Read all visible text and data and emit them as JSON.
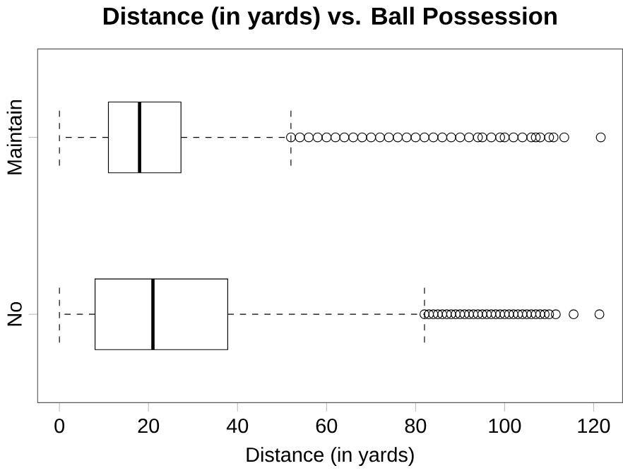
{
  "chart_data": {
    "type": "box",
    "title": "Distance (in yards) vs. Ball Possession",
    "xlabel": "Distance (in yards)",
    "orientation": "horizontal",
    "categories": [
      "Maintain",
      "No"
    ],
    "boxes": [
      {
        "low": 0,
        "q1": 11,
        "median": 18,
        "q3": 27.3,
        "high": 52,
        "outliers": [
          52,
          54,
          56,
          58,
          60,
          62,
          64,
          66,
          68,
          70,
          72,
          74,
          76,
          78,
          80,
          82,
          84,
          86,
          88,
          90,
          92,
          94,
          95,
          97,
          99,
          100,
          102,
          104,
          106,
          107,
          108,
          110,
          111,
          113.4,
          121.6
        ]
      },
      {
        "low": 0,
        "q1": 8,
        "median": 21,
        "q3": 37.8,
        "high": 82,
        "outliers": [
          82,
          83,
          84,
          85,
          86,
          87,
          88,
          89,
          90,
          91,
          92,
          93,
          94,
          95,
          96,
          97,
          98,
          99,
          100,
          101,
          102,
          103,
          104,
          105,
          106,
          107,
          108,
          109,
          110,
          111.5,
          115.5,
          121.3
        ]
      }
    ],
    "xlim": [
      -4.9,
      126.5
    ],
    "xticks": [
      0,
      20,
      40,
      60,
      80,
      100,
      120
    ]
  }
}
